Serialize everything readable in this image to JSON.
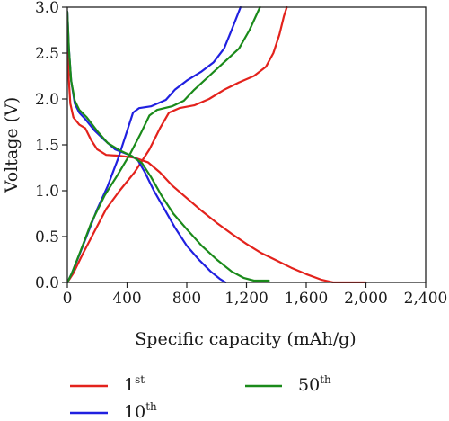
{
  "chart_data": {
    "type": "line",
    "title": "",
    "xlabel": "Specific capacity (mAh/g)",
    "ylabel": "Voltage (V)",
    "xlim": [
      0,
      2400
    ],
    "ylim": [
      0,
      3.0
    ],
    "xticks": [
      0,
      400,
      800,
      1200,
      1600,
      2000,
      2400
    ],
    "xtick_labels": [
      "0",
      "400",
      "800",
      "1,200",
      "1,600",
      "2,000",
      "2,400"
    ],
    "yticks": [
      0,
      0.5,
      1.0,
      1.5,
      2.0,
      2.5,
      3.0
    ],
    "ytick_labels": [
      "0.0",
      "0.5",
      "1.0",
      "1.5",
      "2.0",
      "2.5",
      "3.0"
    ],
    "grid": false,
    "legend_position": "bottom",
    "series": [
      {
        "name": "1st",
        "legend_base": "1",
        "legend_sup": "st",
        "color": "#e3221c",
        "discharge": [
          [
            0,
            2.6
          ],
          [
            10,
            2.2
          ],
          [
            20,
            1.95
          ],
          [
            40,
            1.8
          ],
          [
            80,
            1.72
          ],
          [
            120,
            1.68
          ],
          [
            160,
            1.55
          ],
          [
            200,
            1.45
          ],
          [
            260,
            1.39
          ],
          [
            350,
            1.38
          ],
          [
            450,
            1.36
          ],
          [
            540,
            1.31
          ],
          [
            620,
            1.2
          ],
          [
            700,
            1.06
          ],
          [
            800,
            0.92
          ],
          [
            900,
            0.78
          ],
          [
            1000,
            0.65
          ],
          [
            1100,
            0.53
          ],
          [
            1200,
            0.42
          ],
          [
            1300,
            0.32
          ],
          [
            1400,
            0.24
          ],
          [
            1500,
            0.16
          ],
          [
            1600,
            0.09
          ],
          [
            1700,
            0.03
          ],
          [
            1780,
            0.0
          ],
          [
            2000,
            0.0
          ]
        ],
        "charge": [
          [
            0,
            0.0
          ],
          [
            40,
            0.1
          ],
          [
            100,
            0.3
          ],
          [
            180,
            0.55
          ],
          [
            260,
            0.8
          ],
          [
            350,
            1.0
          ],
          [
            450,
            1.2
          ],
          [
            550,
            1.45
          ],
          [
            620,
            1.68
          ],
          [
            680,
            1.85
          ],
          [
            750,
            1.9
          ],
          [
            850,
            1.93
          ],
          [
            950,
            2.0
          ],
          [
            1050,
            2.1
          ],
          [
            1150,
            2.18
          ],
          [
            1250,
            2.25
          ],
          [
            1330,
            2.35
          ],
          [
            1380,
            2.5
          ],
          [
            1420,
            2.7
          ],
          [
            1450,
            2.9
          ],
          [
            1470,
            3.0
          ]
        ]
      },
      {
        "name": "10th",
        "legend_base": "10",
        "legend_sup": "th",
        "color": "#2020e0",
        "discharge": [
          [
            0,
            2.95
          ],
          [
            10,
            2.55
          ],
          [
            25,
            2.2
          ],
          [
            50,
            1.95
          ],
          [
            80,
            1.85
          ],
          [
            120,
            1.78
          ],
          [
            180,
            1.66
          ],
          [
            250,
            1.55
          ],
          [
            320,
            1.45
          ],
          [
            400,
            1.4
          ],
          [
            470,
            1.34
          ],
          [
            520,
            1.2
          ],
          [
            580,
            1.0
          ],
          [
            650,
            0.8
          ],
          [
            720,
            0.6
          ],
          [
            800,
            0.4
          ],
          [
            880,
            0.25
          ],
          [
            960,
            0.12
          ],
          [
            1020,
            0.04
          ],
          [
            1060,
            0.0
          ]
        ],
        "charge": [
          [
            0,
            0.0
          ],
          [
            30,
            0.1
          ],
          [
            80,
            0.3
          ],
          [
            140,
            0.55
          ],
          [
            200,
            0.8
          ],
          [
            270,
            1.05
          ],
          [
            340,
            1.35
          ],
          [
            400,
            1.65
          ],
          [
            440,
            1.85
          ],
          [
            480,
            1.9
          ],
          [
            560,
            1.92
          ],
          [
            660,
            1.99
          ],
          [
            720,
            2.1
          ],
          [
            800,
            2.2
          ],
          [
            900,
            2.3
          ],
          [
            980,
            2.4
          ],
          [
            1050,
            2.55
          ],
          [
            1100,
            2.75
          ],
          [
            1160,
            3.0
          ]
        ]
      },
      {
        "name": "50th",
        "legend_base": "50",
        "legend_sup": "th",
        "color": "#1a8a1a",
        "discharge": [
          [
            0,
            2.95
          ],
          [
            10,
            2.55
          ],
          [
            25,
            2.2
          ],
          [
            50,
            1.98
          ],
          [
            80,
            1.88
          ],
          [
            130,
            1.8
          ],
          [
            200,
            1.65
          ],
          [
            270,
            1.52
          ],
          [
            350,
            1.44
          ],
          [
            430,
            1.38
          ],
          [
            500,
            1.3
          ],
          [
            560,
            1.15
          ],
          [
            630,
            0.95
          ],
          [
            710,
            0.75
          ],
          [
            800,
            0.58
          ],
          [
            900,
            0.4
          ],
          [
            1000,
            0.25
          ],
          [
            1100,
            0.12
          ],
          [
            1180,
            0.05
          ],
          [
            1250,
            0.02
          ],
          [
            1350,
            0.02
          ]
        ],
        "charge": [
          [
            0,
            0.0
          ],
          [
            30,
            0.1
          ],
          [
            90,
            0.35
          ],
          [
            160,
            0.65
          ],
          [
            250,
            0.95
          ],
          [
            340,
            1.18
          ],
          [
            420,
            1.4
          ],
          [
            490,
            1.62
          ],
          [
            550,
            1.82
          ],
          [
            600,
            1.88
          ],
          [
            700,
            1.92
          ],
          [
            780,
            1.98
          ],
          [
            850,
            2.1
          ],
          [
            950,
            2.25
          ],
          [
            1050,
            2.4
          ],
          [
            1150,
            2.55
          ],
          [
            1220,
            2.75
          ],
          [
            1290,
            3.0
          ]
        ]
      }
    ]
  }
}
